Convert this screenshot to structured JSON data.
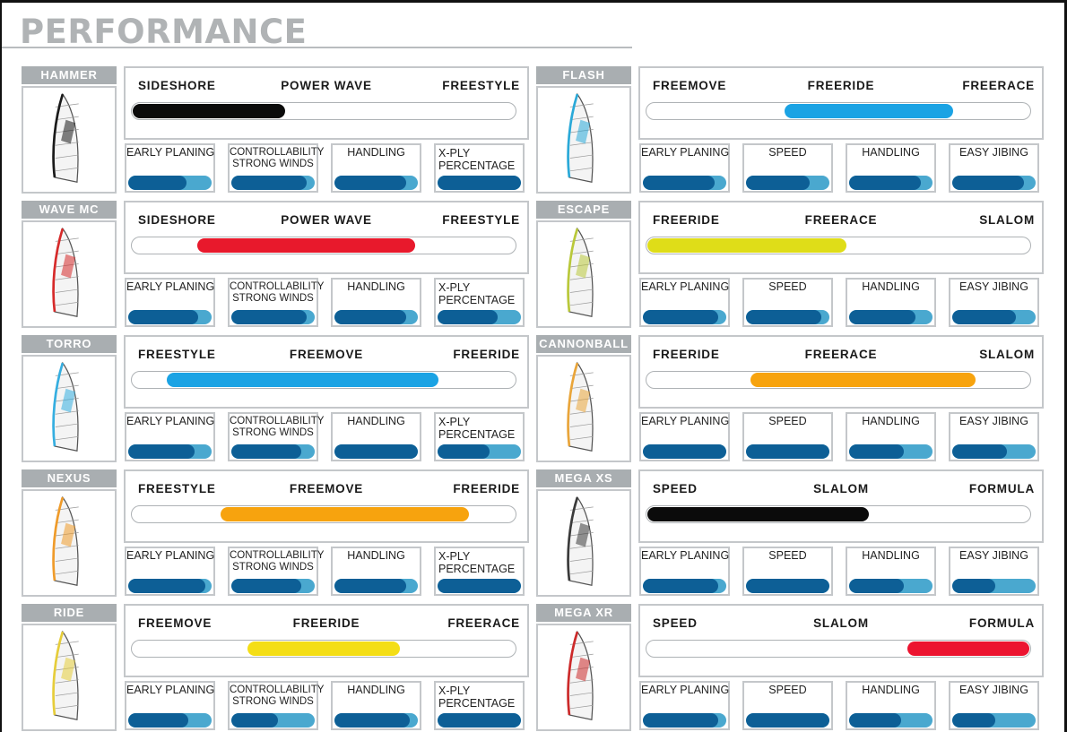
{
  "page_title": "PERFORMANCE",
  "colors": {
    "tab_gray": "#a9aeb1",
    "border_gray": "#c4c7ca",
    "stat_dark": "#0d5f96",
    "stat_light": "#4aa8cf"
  },
  "left_stat_labels": [
    "EARLY PLANING",
    "CONTROLLABILITY STRONG WINDS",
    "HANDLING",
    "X-PLY PERCENTAGE"
  ],
  "right_stat_labels": [
    "EARLY PLANING",
    "SPEED",
    "HANDLING",
    "EASY JIBING"
  ],
  "sails": [
    {
      "name": "HAMMER",
      "range_labels": [
        "SIDESHORE",
        "POWER WAVE",
        "FREESTYLE"
      ],
      "range": {
        "start": 0.0,
        "end": 0.4,
        "color": "#0b0b0b"
      },
      "stats": [
        {
          "label": "EARLY PLANING",
          "value": 0.7
        },
        {
          "label": "CONTROLLABILITY\nSTRONG WINDS",
          "value": 0.9
        },
        {
          "label": "HANDLING",
          "value": 0.86
        },
        {
          "label": "X-PLY\nPERCENTAGE",
          "value": 1.0
        }
      ],
      "sail_color": "#1a1a1a"
    },
    {
      "name": "FLASH",
      "range_labels": [
        "FREEMOVE",
        "FREERIDE",
        "FREERACE"
      ],
      "range": {
        "start": 0.36,
        "end": 0.8,
        "color": "#1ba3e4"
      },
      "stats": [
        {
          "label": "EARLY PLANING",
          "value": 0.86
        },
        {
          "label": "SPEED",
          "value": 0.76
        },
        {
          "label": "HANDLING",
          "value": 0.86
        },
        {
          "label": "EASY JIBING",
          "value": 0.86
        }
      ],
      "sail_color": "#2aa9d8"
    },
    {
      "name": "WAVE MC",
      "range_labels": [
        "SIDESHORE",
        "POWER WAVE",
        "FREESTYLE"
      ],
      "range": {
        "start": 0.17,
        "end": 0.74,
        "color": "#e8192c"
      },
      "stats": [
        {
          "label": "EARLY PLANING",
          "value": 0.84
        },
        {
          "label": "CONTROLLABILITY\nSTRONG WINDS",
          "value": 0.9
        },
        {
          "label": "HANDLING",
          "value": 0.86
        },
        {
          "label": "X-PLY\nPERCENTAGE",
          "value": 0.72
        }
      ],
      "sail_color": "#d62a2a"
    },
    {
      "name": "ESCAPE",
      "range_labels": [
        "FREERIDE",
        "FREERACE",
        "SLALOM"
      ],
      "range": {
        "start": 0.0,
        "end": 0.52,
        "color": "#dfdd18"
      },
      "stats": [
        {
          "label": "EARLY PLANING",
          "value": 0.9
        },
        {
          "label": "SPEED",
          "value": 0.9
        },
        {
          "label": "HANDLING",
          "value": 0.8
        },
        {
          "label": "EASY JIBING",
          "value": 0.76
        }
      ],
      "sail_color": "#b9c83a"
    },
    {
      "name": "TORRO",
      "range_labels": [
        "FREESTYLE",
        "FREEMOVE",
        "FREERIDE"
      ],
      "range": {
        "start": 0.09,
        "end": 0.8,
        "color": "#1ba3e4"
      },
      "stats": [
        {
          "label": "EARLY PLANING",
          "value": 0.8
        },
        {
          "label": "CONTROLLABILITY\nSTRONG WINDS",
          "value": 0.84
        },
        {
          "label": "HANDLING",
          "value": 1.0
        },
        {
          "label": "X-PLY\nPERCENTAGE",
          "value": 0.62
        }
      ],
      "sail_color": "#35aee0"
    },
    {
      "name": "CANNONBALL",
      "range_labels": [
        "FREERIDE",
        "FREERACE",
        "SLALOM"
      ],
      "range": {
        "start": 0.27,
        "end": 0.86,
        "color": "#f7a30e"
      },
      "stats": [
        {
          "label": "EARLY PLANING",
          "value": 1.0
        },
        {
          "label": "SPEED",
          "value": 1.0
        },
        {
          "label": "HANDLING",
          "value": 0.66
        },
        {
          "label": "EASY JIBING",
          "value": 0.66
        }
      ],
      "sail_color": "#e9a53a"
    },
    {
      "name": "NEXUS",
      "range_labels": [
        "FREESTYLE",
        "FREEMOVE",
        "FREERIDE"
      ],
      "range": {
        "start": 0.23,
        "end": 0.88,
        "color": "#f7a30e"
      },
      "stats": [
        {
          "label": "EARLY PLANING",
          "value": 0.92
        },
        {
          "label": "CONTROLLABILITY\nSTRONG WINDS",
          "value": 0.84
        },
        {
          "label": "HANDLING",
          "value": 0.86
        },
        {
          "label": "X-PLY\nPERCENTAGE",
          "value": 1.0
        }
      ],
      "sail_color": "#ef9b2a"
    },
    {
      "name": "MEGA XS",
      "range_labels": [
        "SPEED",
        "SLALOM",
        "FORMULA"
      ],
      "range": {
        "start": 0.0,
        "end": 0.58,
        "color": "#0b0b0b"
      },
      "stats": [
        {
          "label": "EARLY PLANING",
          "value": 0.9
        },
        {
          "label": "SPEED",
          "value": 1.0
        },
        {
          "label": "HANDLING",
          "value": 0.66
        },
        {
          "label": "EASY JIBING",
          "value": 0.52
        }
      ],
      "sail_color": "#3a3a3a"
    },
    {
      "name": "RIDE",
      "range_labels": [
        "FREEMOVE",
        "FREERIDE",
        "FREERACE"
      ],
      "range": {
        "start": 0.3,
        "end": 0.7,
        "color": "#f4de16"
      },
      "stats": [
        {
          "label": "EARLY PLANING",
          "value": 0.72
        },
        {
          "label": "CONTROLLABILITY\nSTRONG WINDS",
          "value": 0.56
        },
        {
          "label": "HANDLING",
          "value": 0.9
        },
        {
          "label": "X-PLY\nPERCENTAGE",
          "value": 1.0
        }
      ],
      "sail_color": "#e6cd3a"
    },
    {
      "name": "MEGA XR",
      "range_labels": [
        "SPEED",
        "SLALOM",
        "FORMULA"
      ],
      "range": {
        "start": 0.68,
        "end": 1.0,
        "color": "#ec1430"
      },
      "stats": [
        {
          "label": "EARLY PLANING",
          "value": 0.9
        },
        {
          "label": "SPEED",
          "value": 1.0
        },
        {
          "label": "HANDLING",
          "value": 0.62
        },
        {
          "label": "EASY JIBING",
          "value": 0.52
        }
      ],
      "sail_color": "#cc2a2a"
    }
  ]
}
